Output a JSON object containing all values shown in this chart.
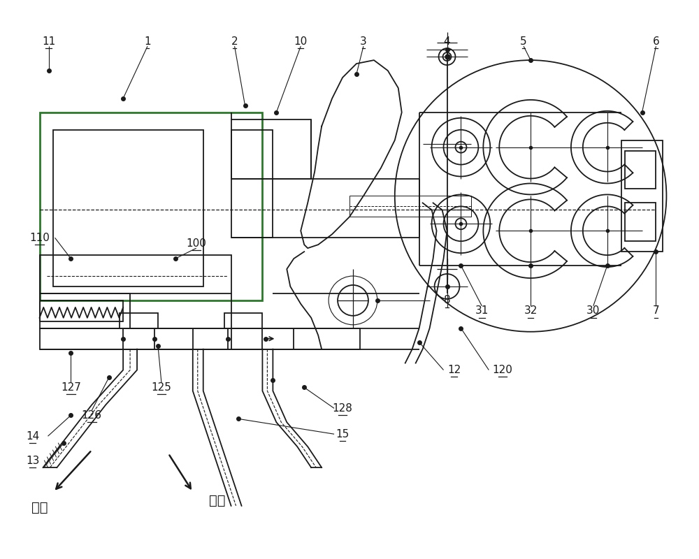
{
  "bg_color": "#ffffff",
  "line_color": "#1a1a1a",
  "green_color": "#2a7a2a",
  "figsize": [
    10,
    8
  ],
  "dpi": 100
}
